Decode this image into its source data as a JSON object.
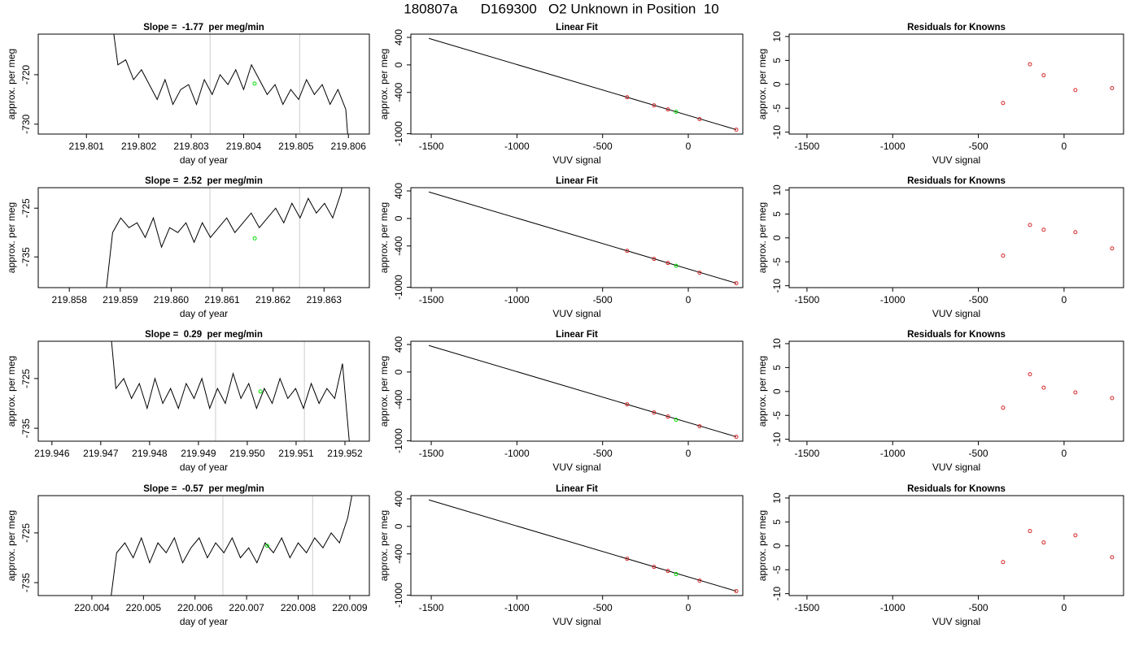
{
  "title": "180807a      D169300   O2 Unknown in Position  10",
  "chart_data": [
    {
      "type": "line",
      "title": "Slope =  -1.77  per meg/min",
      "x_label": "day of year",
      "y_label": "approx. per meg",
      "xlim": [
        219.80008,
        219.8064
      ],
      "ylim": [
        -732,
        -711.8
      ],
      "xticks": [
        219.801,
        219.802,
        219.803,
        219.804,
        219.805,
        219.806
      ],
      "yticks": [
        -730,
        -720
      ],
      "vlines": {
        "color": "#cccccc",
        "x": [
          219.80336,
          219.80507
        ]
      },
      "series": [
        {
          "style": "line",
          "color": "#000000",
          "x": [
            219.80145,
            219.8016,
            219.80175,
            219.8019,
            219.80205,
            219.8022,
            219.80235,
            219.8025,
            219.80265,
            219.8028,
            219.80295,
            219.8031,
            219.80325,
            219.8034,
            219.80355,
            219.8037,
            219.80385,
            219.804,
            219.80415,
            219.8043,
            219.80445,
            219.8046,
            219.80475,
            219.8049,
            219.80505,
            219.8052,
            219.80535,
            219.8055,
            219.80565,
            219.8058,
            219.80595,
            219.806
          ],
          "values": [
            -706,
            -718,
            -717,
            -721,
            -719,
            -722,
            -725,
            -721,
            -726,
            -723,
            -722,
            -726,
            -721,
            -724,
            -720,
            -722,
            -719,
            -723,
            -718,
            -721,
            -724,
            -722,
            -726,
            -723,
            -725,
            -721,
            -724,
            -722,
            -726,
            -723,
            -727,
            -734
          ]
        },
        {
          "style": "points",
          "color": "#00dd00",
          "x": [
            219.80421
          ],
          "values": [
            -721.8
          ]
        }
      ]
    },
    {
      "type": "scatter",
      "title": "Linear Fit",
      "x_label": "VUV signal",
      "y_label": "approx. per meg",
      "xlim": [
        -1619,
        318
      ],
      "ylim": [
        -1005,
        447
      ],
      "xticks": [
        -1500,
        -1000,
        -500,
        0
      ],
      "yticks": [
        -1000,
        -400,
        0,
        400
      ],
      "series": [
        {
          "style": "line",
          "color": "#000000",
          "x": [
            -1514,
            280
          ],
          "values": [
            385,
            -941
          ]
        },
        {
          "style": "points",
          "color": "#d62728",
          "x": [
            -357,
            -200,
            -119,
            66,
            280
          ],
          "values": [
            -470,
            -588,
            -647,
            -788,
            -941
          ]
        },
        {
          "style": "points",
          "color": "#00dd00",
          "x": [
            -71
          ],
          "values": [
            -682
          ]
        }
      ]
    },
    {
      "type": "scatter",
      "title": "Residuals for Knowns",
      "x_label": "VUV signal",
      "y_label": "approx. per meg",
      "xlim": [
        -1604,
        347
      ],
      "ylim": [
        -10.4,
        10.5
      ],
      "xticks": [
        -1500,
        -1000,
        -500,
        0
      ],
      "yticks": [
        -10,
        -5,
        0,
        5,
        10
      ],
      "series": [
        {
          "style": "points",
          "color": "#d62728",
          "x": [
            -356,
            -199,
            -119,
            66,
            280
          ],
          "values": [
            -3.9,
            4.2,
            1.9,
            -1.2,
            -0.8
          ]
        }
      ]
    },
    {
      "type": "line",
      "title": "Slope =  2.52  per meg/min",
      "x_label": "day of year",
      "y_label": "approx. per meg",
      "xlim": [
        219.85739,
        219.86389
      ],
      "ylim": [
        -741.3,
        -720.8
      ],
      "xticks": [
        219.858,
        219.859,
        {
          "value": 219.86,
          "label": "219.860"
        },
        219.861,
        219.862,
        219.863
      ],
      "yticks": [
        -735,
        -725
      ],
      "vlines": {
        "color": "#cccccc",
        "x": [
          219.86076,
          219.86252
        ]
      },
      "series": [
        {
          "style": "line",
          "color": "#000000",
          "x": [
            219.85869,
            219.85885,
            219.85901,
            219.85917,
            219.85933,
            219.85949,
            219.85965,
            219.85981,
            219.85997,
            219.86013,
            219.86029,
            219.86045,
            219.86061,
            219.86077,
            219.86093,
            219.86109,
            219.86125,
            219.86141,
            219.86157,
            219.86173,
            219.86189,
            219.86205,
            219.86221,
            219.86237,
            219.86253,
            219.86269,
            219.86285,
            219.86301,
            219.86317,
            219.86333,
            219.86345
          ],
          "values": [
            -745,
            -730,
            -727,
            -729,
            -728,
            -731,
            -727,
            -733,
            -729,
            -730,
            -728,
            -732,
            -728,
            -731,
            -729,
            -727,
            -730,
            -728,
            -726,
            -729,
            -727,
            -725,
            -728,
            -724,
            -727,
            -723,
            -726,
            -724,
            -727,
            -722,
            -715
          ]
        },
        {
          "style": "points",
          "color": "#00dd00",
          "x": [
            219.86164
          ],
          "values": [
            -731.2
          ]
        }
      ]
    },
    {
      "type": "scatter",
      "title": "Linear Fit",
      "x_label": "VUV signal",
      "y_label": "approx. per meg",
      "xlim": [
        -1619,
        318
      ],
      "ylim": [
        -1005,
        447
      ],
      "xticks": [
        -1500,
        -1000,
        -500,
        0
      ],
      "yticks": [
        -1000,
        -400,
        0,
        400
      ],
      "series": [
        {
          "style": "line",
          "color": "#000000",
          "x": [
            -1514,
            280
          ],
          "values": [
            385,
            -941
          ]
        },
        {
          "style": "points",
          "color": "#d62728",
          "x": [
            -357,
            -200,
            -119,
            66,
            280
          ],
          "values": [
            -470,
            -588,
            -647,
            -788,
            -941
          ]
        },
        {
          "style": "points",
          "color": "#00dd00",
          "x": [
            -71
          ],
          "values": [
            -688
          ]
        }
      ]
    },
    {
      "type": "scatter",
      "title": "Residuals for Knowns",
      "x_label": "VUV signal",
      "y_label": "approx. per meg",
      "xlim": [
        -1604,
        347
      ],
      "ylim": [
        -10.4,
        10.5
      ],
      "xticks": [
        -1500,
        -1000,
        -500,
        0
      ],
      "yticks": [
        -10,
        -5,
        0,
        5,
        10
      ],
      "series": [
        {
          "style": "points",
          "color": "#d62728",
          "x": [
            -356,
            -199,
            -119,
            66,
            280
          ],
          "values": [
            -3.7,
            2.7,
            1.7,
            1.2,
            -2.2
          ]
        }
      ]
    },
    {
      "type": "line",
      "title": "Slope =  0.29  per meg/min",
      "x_label": "day of year",
      "y_label": "approx. per meg",
      "xlim": [
        219.94572,
        219.9525
      ],
      "ylim": [
        -737.6,
        -717.5
      ],
      "xticks": [
        219.946,
        219.947,
        219.948,
        219.949,
        {
          "value": 219.95,
          "label": "219.950"
        },
        219.951,
        219.952
      ],
      "yticks": [
        -735,
        -725
      ],
      "vlines": {
        "color": "#cccccc",
        "x": [
          219.94935,
          219.95117
        ]
      },
      "series": [
        {
          "style": "line",
          "color": "#000000",
          "x": [
            219.94715,
            219.94731,
            219.94747,
            219.94763,
            219.94779,
            219.94795,
            219.94811,
            219.94827,
            219.94843,
            219.94859,
            219.94875,
            219.94891,
            219.94907,
            219.94923,
            219.94939,
            219.94955,
            219.94971,
            219.94987,
            219.95003,
            219.95019,
            219.95035,
            219.95051,
            219.95067,
            219.95083,
            219.95099,
            219.95115,
            219.95131,
            219.95147,
            219.95163,
            219.95179,
            219.95195,
            219.95211
          ],
          "values": [
            -710,
            -727,
            -725,
            -729,
            -726,
            -731,
            -725,
            -730,
            -727,
            -731,
            -726,
            -729,
            -725,
            -731,
            -727,
            -730,
            -724,
            -729,
            -726,
            -731,
            -727,
            -730,
            -725,
            -729,
            -727,
            -731,
            -726,
            -730,
            -727,
            -729,
            -722,
            -740
          ]
        },
        {
          "style": "points",
          "color": "#00dd00",
          "x": [
            219.95027
          ],
          "values": [
            -727.6
          ]
        }
      ]
    },
    {
      "type": "scatter",
      "title": "Linear Fit",
      "x_label": "VUV signal",
      "y_label": "approx. per meg",
      "xlim": [
        -1619,
        318
      ],
      "ylim": [
        -1005,
        447
      ],
      "xticks": [
        -1500,
        -1000,
        -500,
        0
      ],
      "yticks": [
        -1000,
        -400,
        0,
        400
      ],
      "series": [
        {
          "style": "line",
          "color": "#000000",
          "x": [
            -1514,
            280
          ],
          "values": [
            385,
            -941
          ]
        },
        {
          "style": "points",
          "color": "#d62728",
          "x": [
            -357,
            -200,
            -119,
            66,
            280
          ],
          "values": [
            -470,
            -588,
            -647,
            -788,
            -941
          ]
        },
        {
          "style": "points",
          "color": "#00dd00",
          "x": [
            -71
          ],
          "values": [
            -694
          ]
        }
      ]
    },
    {
      "type": "scatter",
      "title": "Residuals for Knowns",
      "x_label": "VUV signal",
      "y_label": "approx. per meg",
      "xlim": [
        -1604,
        347
      ],
      "ylim": [
        -10.4,
        10.5
      ],
      "xticks": [
        -1500,
        -1000,
        -500,
        0
      ],
      "yticks": [
        -10,
        -5,
        0,
        5,
        10
      ],
      "series": [
        {
          "style": "points",
          "color": "#d62728",
          "x": [
            -356,
            -199,
            -119,
            66,
            280
          ],
          "values": [
            -3.4,
            3.6,
            0.8,
            -0.2,
            -1.4
          ]
        }
      ]
    },
    {
      "type": "line",
      "title": "Slope =  -0.57  per meg/min",
      "x_label": "day of year",
      "y_label": "approx. per meg",
      "xlim": [
        220.00296,
        220.00938
      ],
      "ylim": [
        -737.6,
        -717.5
      ],
      "xticks": [
        220.004,
        220.005,
        220.006,
        220.007,
        220.008,
        220.009
      ],
      "yticks": [
        -735,
        -725
      ],
      "vlines": {
        "color": "#cccccc",
        "x": [
          220.00654,
          220.00828
        ]
      },
      "series": [
        {
          "style": "line",
          "color": "#000000",
          "x": [
            220.00432,
            220.00448,
            220.00464,
            220.0048,
            220.00496,
            220.00512,
            220.00528,
            220.00544,
            220.0056,
            220.00576,
            220.00592,
            220.00608,
            220.00624,
            220.0064,
            220.00656,
            220.00672,
            220.00688,
            220.00704,
            220.0072,
            220.00736,
            220.00752,
            220.00768,
            220.00784,
            220.008,
            220.00816,
            220.00832,
            220.00848,
            220.00864,
            220.0088,
            220.00896,
            220.00914
          ],
          "values": [
            -742,
            -729,
            -727,
            -730,
            -726,
            -731,
            -727,
            -729,
            -726,
            -731,
            -728,
            -726,
            -730,
            -727,
            -729,
            -726,
            -730,
            -728,
            -731,
            -727,
            -729,
            -726,
            -730,
            -727,
            -729,
            -726,
            -728,
            -725,
            -727,
            -722,
            -712
          ]
        },
        {
          "style": "points",
          "color": "#00dd00",
          "x": [
            220.0074
          ],
          "values": [
            -727.6
          ]
        }
      ]
    },
    {
      "type": "scatter",
      "title": "Linear Fit",
      "x_label": "VUV signal",
      "y_label": "approx. per meg",
      "xlim": [
        -1619,
        318
      ],
      "ylim": [
        -1005,
        447
      ],
      "xticks": [
        -1500,
        -1000,
        -500,
        0
      ],
      "yticks": [
        -1000,
        -400,
        0,
        400
      ],
      "series": [
        {
          "style": "line",
          "color": "#000000",
          "x": [
            -1514,
            280
          ],
          "values": [
            385,
            -941
          ]
        },
        {
          "style": "points",
          "color": "#d62728",
          "x": [
            -357,
            -200,
            -119,
            66,
            280
          ],
          "values": [
            -470,
            -588,
            -647,
            -788,
            -941
          ]
        },
        {
          "style": "points",
          "color": "#00dd00",
          "x": [
            -71
          ],
          "values": [
            -694
          ]
        }
      ]
    },
    {
      "type": "scatter",
      "title": "Residuals for Knowns",
      "x_label": "VUV signal",
      "y_label": "approx. per meg",
      "xlim": [
        -1604,
        347
      ],
      "ylim": [
        -10.4,
        10.5
      ],
      "xticks": [
        -1500,
        -1000,
        -500,
        0
      ],
      "yticks": [
        -10,
        -5,
        0,
        5,
        10
      ],
      "series": [
        {
          "style": "points",
          "color": "#d62728",
          "x": [
            -356,
            -199,
            -119,
            66,
            280
          ],
          "values": [
            -3.4,
            3.1,
            0.7,
            2.2,
            -2.4
          ]
        }
      ]
    }
  ]
}
